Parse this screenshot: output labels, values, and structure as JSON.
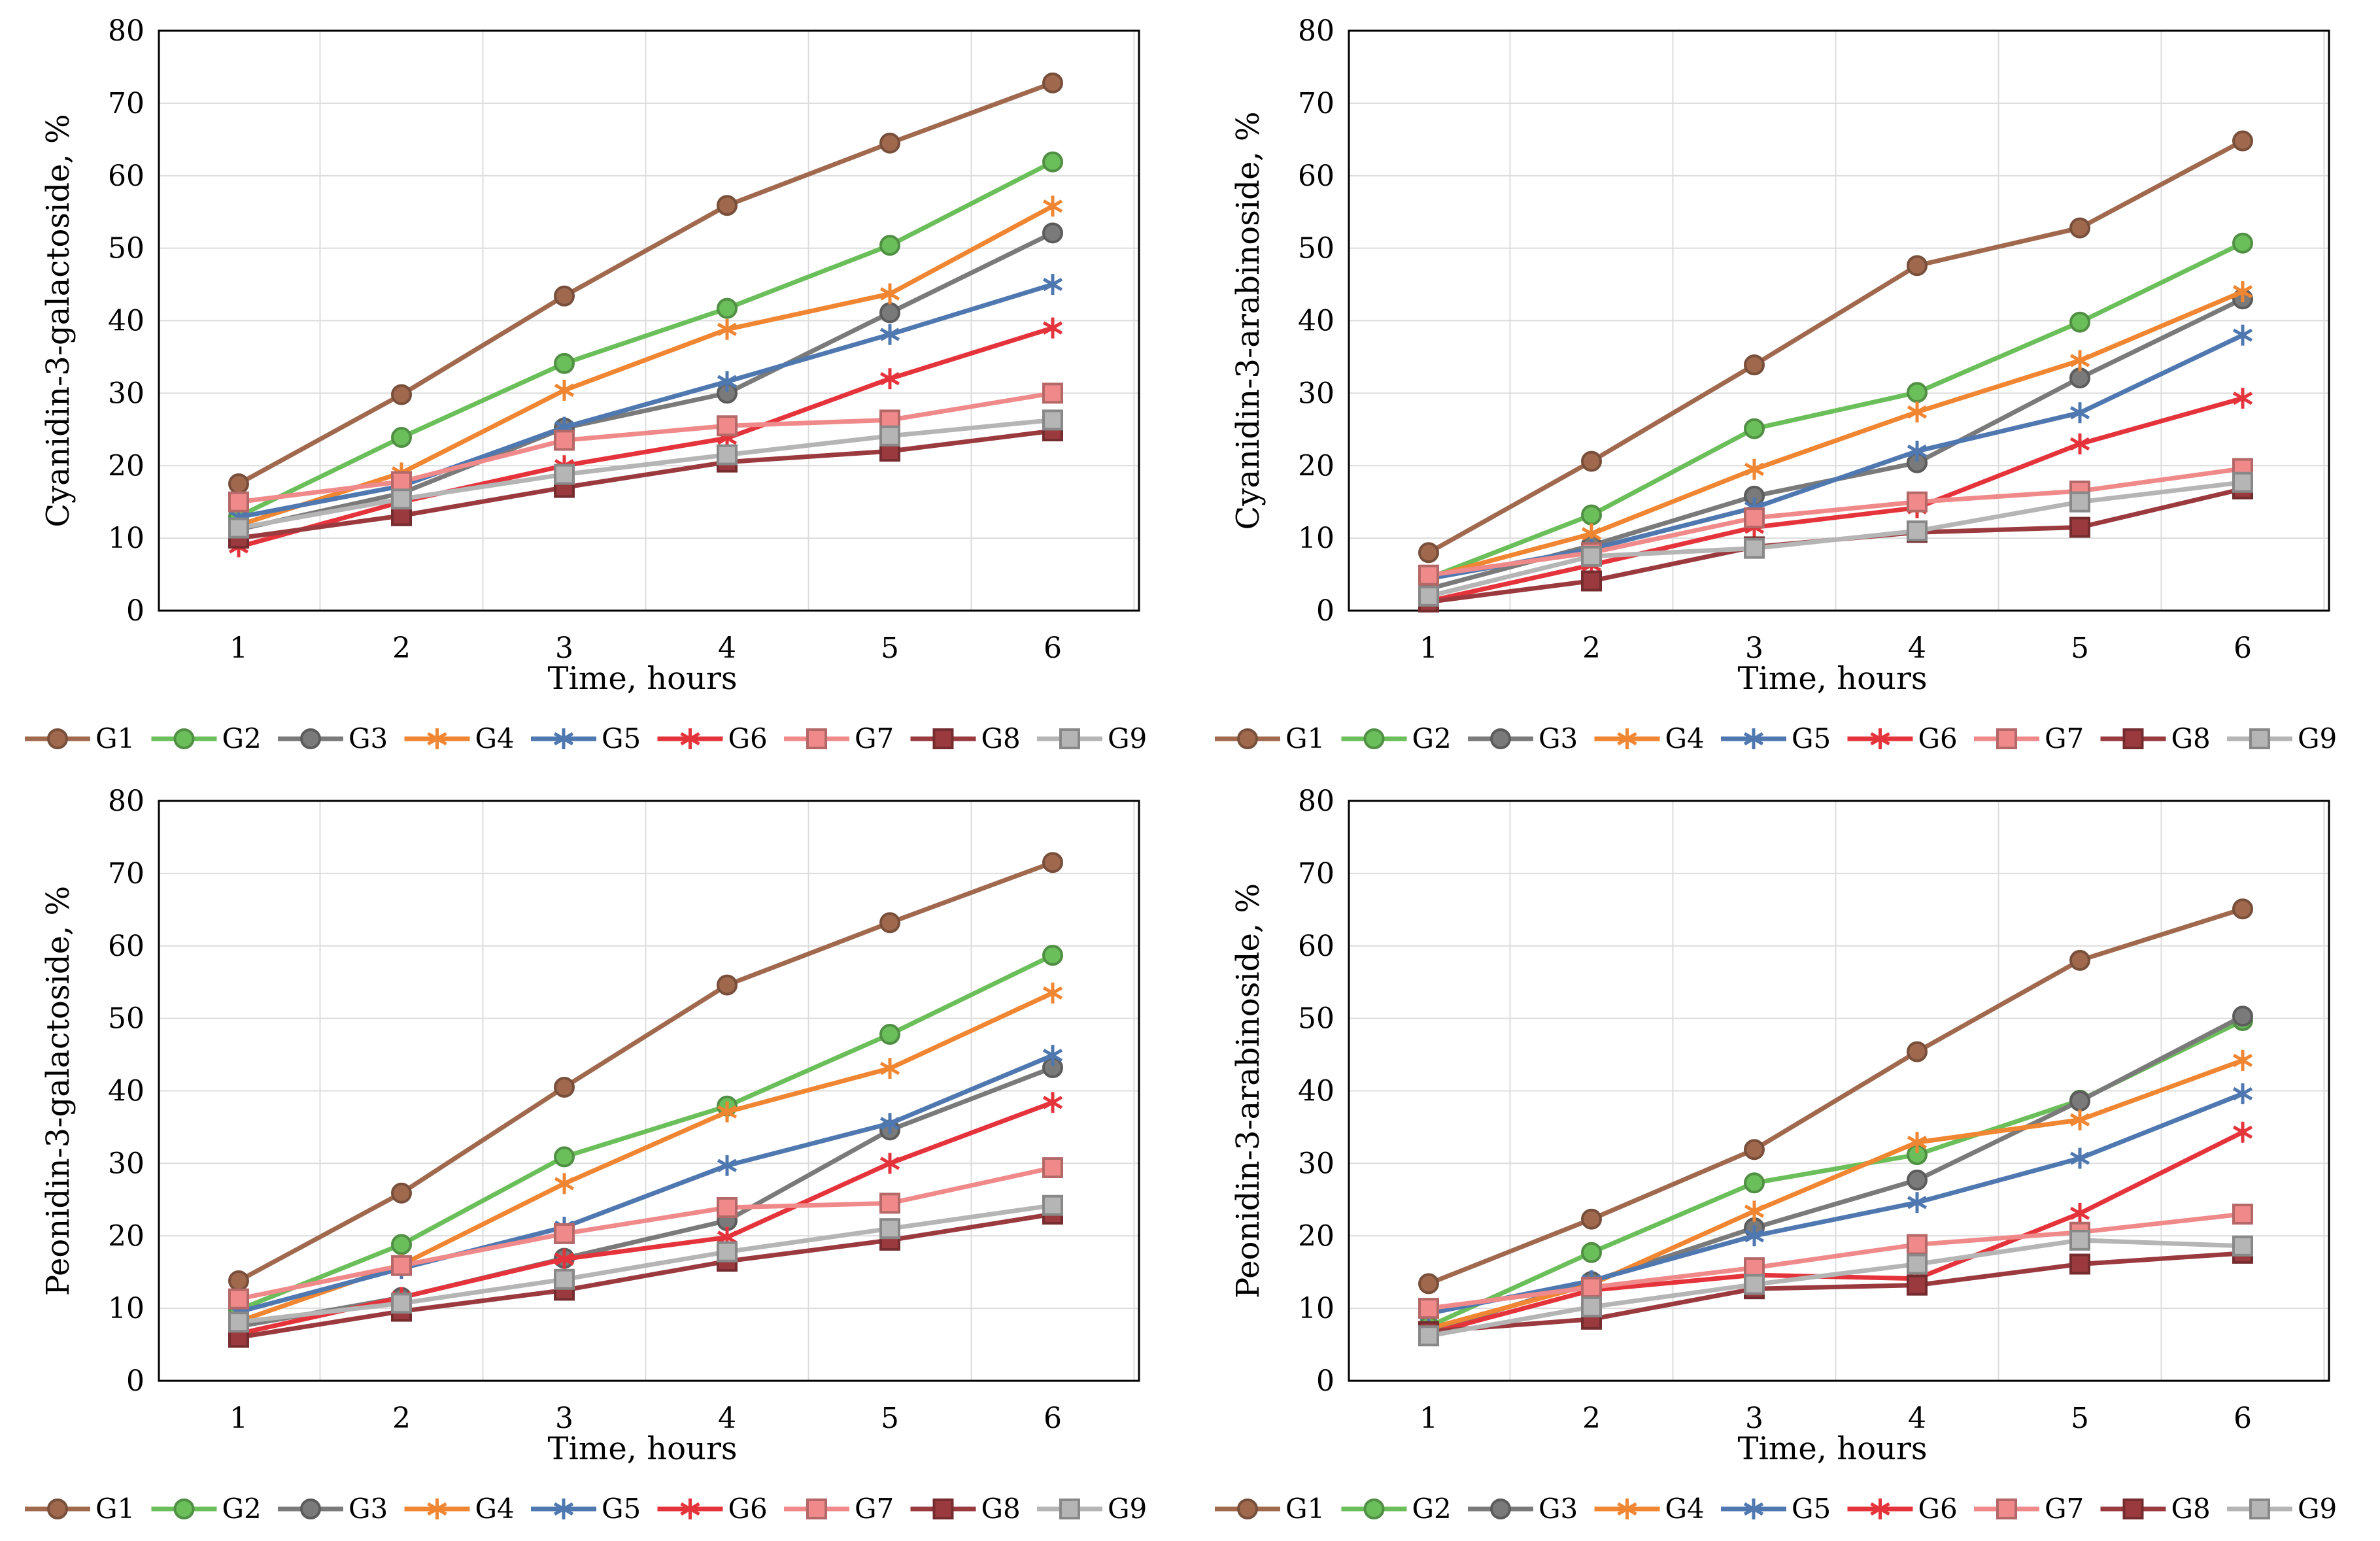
{
  "figure": {
    "series_names": [
      "G1",
      "G2",
      "G3",
      "G4",
      "G5",
      "G6",
      "G7",
      "G8",
      "G9"
    ],
    "series_colors": [
      "#A0694E",
      "#6BBF5A",
      "#7A7A7A",
      "#F08532",
      "#4F78B0",
      "#E5333B",
      "#F08A8A",
      "#9B3A3E",
      "#B5B5B5"
    ],
    "series_markers": [
      "circle",
      "circle",
      "circle",
      "star",
      "star",
      "star",
      "square",
      "square",
      "square"
    ]
  },
  "chart_data": [
    {
      "type": "line",
      "xlabel": "Time, hours",
      "ylabel": "Cyanidin-3-galactoside, %",
      "x": [
        1,
        2,
        3,
        4,
        5,
        6
      ],
      "ylim": [
        0,
        80
      ],
      "yticks": [
        0,
        10,
        20,
        30,
        40,
        50,
        60,
        70,
        80
      ],
      "grid": true,
      "legend": "bottom",
      "series": [
        {
          "name": "G1",
          "values": [
            17.5,
            29.8,
            43.4,
            55.9,
            64.5,
            72.8
          ]
        },
        {
          "name": "G2",
          "values": [
            13.0,
            23.9,
            34.1,
            41.7,
            50.4,
            61.9
          ]
        },
        {
          "name": "G3",
          "values": [
            11.2,
            16.2,
            25.2,
            30.0,
            41.1,
            52.1
          ]
        },
        {
          "name": "G4",
          "values": [
            11.8,
            19.0,
            30.4,
            38.8,
            43.7,
            55.8
          ]
        },
        {
          "name": "G5",
          "values": [
            12.9,
            17.2,
            25.3,
            31.6,
            38.1,
            45.0
          ]
        },
        {
          "name": "G6",
          "values": [
            8.8,
            15.0,
            20.0,
            23.8,
            32.0,
            39.0
          ]
        },
        {
          "name": "G7",
          "values": [
            15.0,
            17.8,
            23.5,
            25.5,
            26.3,
            30.0
          ]
        },
        {
          "name": "G8",
          "values": [
            10.0,
            13.1,
            17.0,
            20.5,
            22.0,
            24.8
          ]
        },
        {
          "name": "G9",
          "values": [
            11.4,
            15.4,
            18.8,
            21.5,
            24.1,
            26.3
          ]
        }
      ]
    },
    {
      "type": "line",
      "xlabel": "Time, hours",
      "ylabel": "Cyanidin-3-arabinoside, %",
      "x": [
        1,
        2,
        3,
        4,
        5,
        6
      ],
      "ylim": [
        0,
        80
      ],
      "yticks": [
        0,
        10,
        20,
        30,
        40,
        50,
        60,
        70,
        80
      ],
      "grid": true,
      "legend": "bottom",
      "series": [
        {
          "name": "G1",
          "values": [
            8.0,
            20.6,
            33.9,
            47.6,
            52.8,
            64.8
          ]
        },
        {
          "name": "G2",
          "values": [
            4.5,
            13.2,
            25.1,
            30.1,
            39.8,
            50.7
          ]
        },
        {
          "name": "G3",
          "values": [
            3.0,
            9.0,
            15.8,
            20.4,
            32.1,
            43.0
          ]
        },
        {
          "name": "G4",
          "values": [
            4.6,
            10.6,
            19.5,
            27.4,
            34.5,
            44.0
          ]
        },
        {
          "name": "G5",
          "values": [
            4.4,
            8.5,
            14.2,
            22.0,
            27.3,
            38.0
          ]
        },
        {
          "name": "G6",
          "values": [
            1.3,
            6.3,
            11.5,
            14.2,
            23.0,
            29.3
          ]
        },
        {
          "name": "G7",
          "values": [
            4.9,
            8.0,
            12.8,
            15.0,
            16.5,
            19.6
          ]
        },
        {
          "name": "G8",
          "values": [
            1.2,
            4.1,
            8.8,
            10.8,
            11.5,
            16.8
          ]
        },
        {
          "name": "G9",
          "values": [
            2.0,
            7.5,
            8.6,
            11.0,
            15.0,
            17.7
          ]
        }
      ]
    },
    {
      "type": "line",
      "xlabel": "Time, hours",
      "ylabel": "Peonidin-3-galactoside, %",
      "x": [
        1,
        2,
        3,
        4,
        5,
        6
      ],
      "ylim": [
        0,
        80
      ],
      "yticks": [
        0,
        10,
        20,
        30,
        40,
        50,
        60,
        70,
        80
      ],
      "grid": true,
      "legend": "bottom",
      "series": [
        {
          "name": "G1",
          "values": [
            13.8,
            25.9,
            40.5,
            54.6,
            63.2,
            71.5
          ]
        },
        {
          "name": "G2",
          "values": [
            9.8,
            18.8,
            30.9,
            37.9,
            47.8,
            58.7
          ]
        },
        {
          "name": "G3",
          "values": [
            7.5,
            11.5,
            16.9,
            22.1,
            34.6,
            43.2
          ]
        },
        {
          "name": "G4",
          "values": [
            8.2,
            16.0,
            27.2,
            37.1,
            43.1,
            53.5
          ]
        },
        {
          "name": "G5",
          "values": [
            9.5,
            15.5,
            21.2,
            29.7,
            35.5,
            44.9
          ]
        },
        {
          "name": "G6",
          "values": [
            6.5,
            11.5,
            16.8,
            19.8,
            30.0,
            38.4
          ]
        },
        {
          "name": "G7",
          "values": [
            11.3,
            15.9,
            20.3,
            23.9,
            24.5,
            29.4
          ]
        },
        {
          "name": "G8",
          "values": [
            6.0,
            9.6,
            12.5,
            16.5,
            19.4,
            23.0
          ]
        },
        {
          "name": "G9",
          "values": [
            8.1,
            10.7,
            14.0,
            17.8,
            21.0,
            24.2
          ]
        }
      ]
    },
    {
      "type": "line",
      "xlabel": "Time, hours",
      "ylabel": "Peonidin-3-arabinoside, %",
      "x": [
        1,
        2,
        3,
        4,
        5,
        6
      ],
      "ylim": [
        0,
        80
      ],
      "yticks": [
        0,
        10,
        20,
        30,
        40,
        50,
        60,
        70,
        80
      ],
      "grid": true,
      "legend": "bottom",
      "series": [
        {
          "name": "G1",
          "values": [
            13.4,
            22.3,
            31.9,
            45.4,
            58.0,
            65.1
          ]
        },
        {
          "name": "G2",
          "values": [
            7.5,
            17.7,
            27.3,
            31.2,
            38.7,
            49.7
          ]
        },
        {
          "name": "G3",
          "values": [
            6.8,
            13.7,
            21.1,
            27.7,
            38.6,
            50.3
          ]
        },
        {
          "name": "G4",
          "values": [
            7.2,
            13.3,
            23.4,
            32.9,
            36.0,
            44.2
          ]
        },
        {
          "name": "G5",
          "values": [
            9.3,
            13.8,
            20.0,
            24.6,
            30.7,
            39.6
          ]
        },
        {
          "name": "G6",
          "values": [
            6.5,
            12.5,
            14.6,
            14.1,
            23.1,
            34.3
          ]
        },
        {
          "name": "G7",
          "values": [
            10.0,
            12.9,
            15.6,
            18.8,
            20.5,
            23.0
          ]
        },
        {
          "name": "G8",
          "values": [
            6.8,
            8.5,
            12.7,
            13.2,
            16.1,
            17.6
          ]
        },
        {
          "name": "G9",
          "values": [
            6.2,
            10.2,
            13.3,
            16.1,
            19.4,
            18.6
          ]
        }
      ]
    }
  ]
}
